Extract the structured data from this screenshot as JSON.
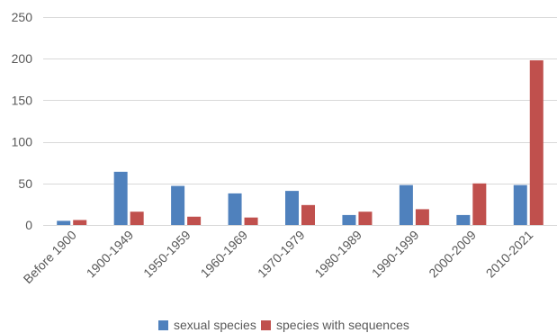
{
  "chart_data": {
    "type": "bar",
    "categories": [
      "Before 1900",
      "1900-1949",
      "1950-1959",
      "1960-1969",
      "1970-1979",
      "1980-1989",
      "1990-1999",
      "2000-2009",
      "2010-2021"
    ],
    "series": [
      {
        "name": "sexual species",
        "color": "#4f81bd",
        "values": [
          5,
          64,
          47,
          38,
          41,
          12,
          48,
          12,
          48
        ]
      },
      {
        "name": "species with sequences",
        "color": "#c0504d",
        "values": [
          6,
          16,
          10,
          9,
          24,
          16,
          19,
          50,
          198
        ]
      }
    ],
    "ylim": [
      0,
      250
    ],
    "yticks": [
      0,
      50,
      100,
      150,
      200,
      250
    ],
    "grid": true,
    "legend_position": "bottom"
  }
}
